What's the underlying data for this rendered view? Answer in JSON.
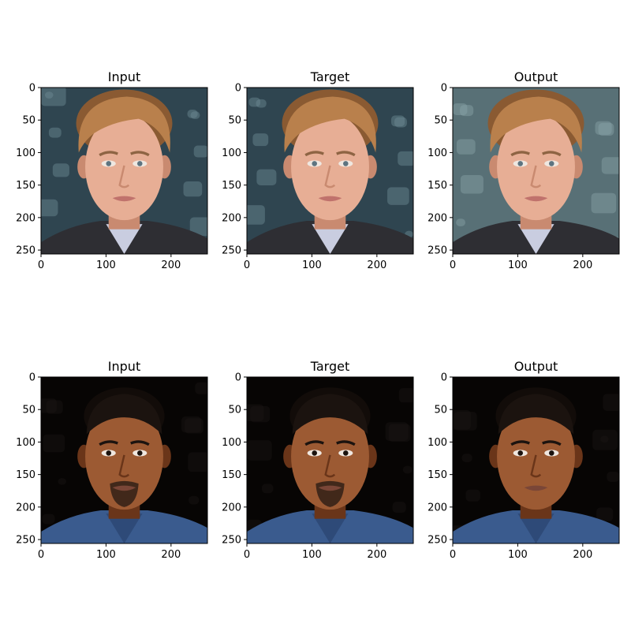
{
  "chart_data": {
    "type": "image",
    "rows": 2,
    "cols": 3,
    "image_size": [
      256,
      256
    ],
    "panels": [
      {
        "title": "Input",
        "image": "face-1-input",
        "palette": "fair",
        "background": "blue-grey-bokeh"
      },
      {
        "title": "Target",
        "image": "face-1-target",
        "palette": "fair",
        "background": "blue-grey-bokeh"
      },
      {
        "title": "Output",
        "image": "face-1-output",
        "palette": "fair",
        "background": "grey-blue-blur"
      },
      {
        "title": "Input",
        "image": "face-2-input",
        "palette": "dark",
        "background": "black"
      },
      {
        "title": "Target",
        "image": "face-2-target",
        "palette": "dark",
        "background": "black"
      },
      {
        "title": "Output",
        "image": "face-2-output",
        "palette": "dark",
        "background": "black"
      }
    ],
    "x_ticks": [
      0,
      100,
      200
    ],
    "y_ticks": [
      0,
      50,
      100,
      150,
      200,
      250
    ],
    "xlim": [
      0,
      256
    ],
    "ylim": [
      256,
      0
    ]
  },
  "palettes": {
    "fair": {
      "skin": "#e7ae95",
      "skin_shade": "#c98a70",
      "hair": "#b9804c",
      "hair_dark": "#8a5a32",
      "lips": "#c0726c",
      "eyes": "#5d7480",
      "brow": "#8e6443",
      "cloth": "#2e2e33",
      "shirt": "#c9cde0"
    },
    "dark": {
      "skin": "#9c5a33",
      "skin_shade": "#6a3519",
      "hair": "#1b130f",
      "hair_dark": "#120c09",
      "lips": "#7a4637",
      "eyes": "#1a120e",
      "brow": "#1b130f",
      "cloth": "#3a5b8e",
      "shirt": "#2e4a78"
    }
  },
  "backgrounds": {
    "blue-grey-bokeh": {
      "base": "#2f4550",
      "spots": "#6f8c95"
    },
    "grey-blue-blur": {
      "base": "#587076",
      "spots": "#8aa3a8"
    },
    "black": {
      "base": "#070504",
      "spots": "#1a1714"
    }
  }
}
